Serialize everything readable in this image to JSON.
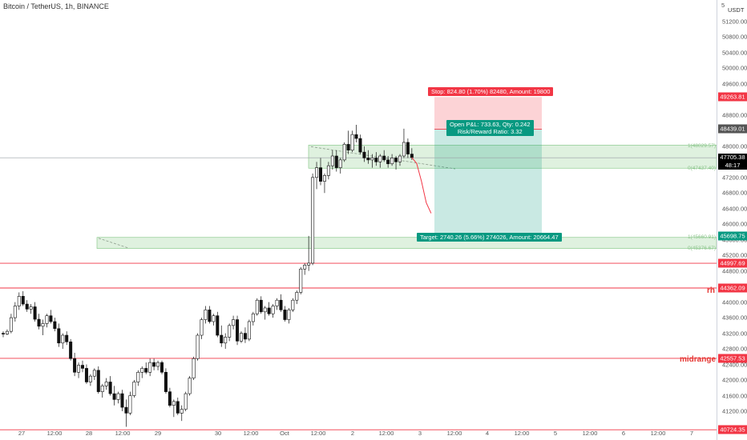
{
  "header": {
    "title": "Bitcoin / TetherUS, 1h, BINANCE"
  },
  "axis": {
    "currency": "USDT",
    "currency_prefix": "5"
  },
  "chart_data": {
    "type": "candlestick",
    "title": "Bitcoin / TetherUS, 1h, BINANCE",
    "ylim": [
      40720,
      51500
    ],
    "y_ticks": [
      "51200.00",
      "50800.00",
      "50400.00",
      "50000.00",
      "49600.00",
      "49200.00",
      "48800.00",
      "48400.00",
      "48000.00",
      "47600.00",
      "47200.00",
      "46800.00",
      "46400.00",
      "46000.00",
      "45600.00",
      "45200.00",
      "44800.00",
      "44400.00",
      "44000.00",
      "43600.00",
      "43200.00",
      "42800.00",
      "42400.00",
      "42000.00",
      "41600.00",
      "41200.00"
    ],
    "x_ticks": [
      "27",
      "12:00",
      "28",
      "12:00",
      "29",
      "30",
      "12:00",
      "Oct",
      "12:00",
      "2",
      "12:00",
      "3",
      "12:00",
      "4",
      "12:00",
      "5",
      "12:00",
      "6",
      "12:00",
      "7"
    ],
    "horizontal_levels": [
      {
        "value": 44997.69,
        "label": "44997.69",
        "color": "#f23645"
      },
      {
        "value": 44362.09,
        "label": "44362.09",
        "color": "#f23645",
        "note": "rh"
      },
      {
        "value": 42557.53,
        "label": "42557.53",
        "color": "#f23645",
        "note": "midrange"
      },
      {
        "value": 40724.35,
        "label": "40724.35",
        "color": "#f23645"
      }
    ],
    "price_labels": {
      "current": {
        "value": 47705.38,
        "label": "47705.38",
        "countdown": "48:17",
        "color": "#000000"
      },
      "stop": {
        "value": 49263.81,
        "label": "49263.81",
        "color": "#f23645"
      },
      "entry": {
        "value": 48439.01,
        "label": "48439.01",
        "color": "#555555"
      },
      "target": {
        "value": 45698.75,
        "label": "45698.75",
        "color": "#089981"
      }
    },
    "position": {
      "type": "short",
      "entry": 48439.01,
      "stop": 49263.81,
      "target": 45698.75,
      "stop_text": "Stop: 824.80 (1.70%) 82480, Amount: 19800",
      "pnl_text": "Open P&L: 733.63, Qty: 0.242",
      "rr_text": "Risk/Reward Ratio: 3.32",
      "target_text": "Target: 2740.26 (5.66%) 274026, Amount: 20664.47"
    },
    "zones": [
      {
        "top": 48029.57,
        "bottom": 47437.4,
        "top_label": "1(48029.57)",
        "bottom_label": "0(47437.40)"
      },
      {
        "top": 45660.91,
        "bottom": 45376.67,
        "top_label": "1(45660.91)",
        "bottom_label": "0(45376.67)"
      }
    ],
    "candles": [
      [
        43200,
        43250,
        43100,
        43180
      ],
      [
        43180,
        43300,
        43150,
        43250
      ],
      [
        43250,
        43700,
        43200,
        43600
      ],
      [
        43600,
        44000,
        43500,
        43900
      ],
      [
        43900,
        44250,
        43800,
        44150
      ],
      [
        44150,
        44280,
        43900,
        43950
      ],
      [
        43950,
        44050,
        43750,
        43820
      ],
      [
        43820,
        43950,
        43700,
        43880
      ],
      [
        43880,
        44000,
        43500,
        43560
      ],
      [
        43560,
        43700,
        43300,
        43380
      ],
      [
        43380,
        43550,
        43150,
        43450
      ],
      [
        43450,
        43700,
        43350,
        43650
      ],
      [
        43650,
        43800,
        43450,
        43500
      ],
      [
        43500,
        43600,
        43250,
        43320
      ],
      [
        43320,
        43450,
        42850,
        42950
      ],
      [
        42950,
        43200,
        42800,
        43150
      ],
      [
        43150,
        43250,
        42900,
        42980
      ],
      [
        42980,
        43050,
        42500,
        42550
      ],
      [
        42550,
        42700,
        42100,
        42200
      ],
      [
        42200,
        42450,
        42050,
        42380
      ],
      [
        42380,
        42500,
        42200,
        42300
      ],
      [
        42300,
        42400,
        41900,
        41950
      ],
      [
        41950,
        42150,
        41850,
        42100
      ],
      [
        42100,
        42300,
        42000,
        42250
      ],
      [
        42250,
        42350,
        41650,
        41700
      ],
      [
        41700,
        41900,
        41550,
        41850
      ],
      [
        41850,
        42050,
        41750,
        41950
      ],
      [
        41950,
        42100,
        41600,
        41650
      ],
      [
        41650,
        41850,
        41350,
        41500
      ],
      [
        41500,
        41700,
        41400,
        41650
      ],
      [
        41650,
        41750,
        41200,
        41300
      ],
      [
        41300,
        41500,
        40800,
        41150
      ],
      [
        41150,
        41700,
        41100,
        41600
      ],
      [
        41600,
        42000,
        41550,
        41950
      ],
      [
        41950,
        42250,
        41850,
        42200
      ],
      [
        42200,
        42350,
        42050,
        42300
      ],
      [
        42300,
        42450,
        42150,
        42200
      ],
      [
        42200,
        42550,
        42100,
        42450
      ],
      [
        42450,
        42550,
        42250,
        42350
      ],
      [
        42350,
        42500,
        42250,
        42450
      ],
      [
        42450,
        42500,
        42150,
        42200
      ],
      [
        42200,
        42300,
        41650,
        41700
      ],
      [
        41700,
        41800,
        41300,
        41350
      ],
      [
        41350,
        41500,
        41050,
        41450
      ],
      [
        41450,
        41550,
        41100,
        41150
      ],
      [
        41150,
        41350,
        40950,
        41250
      ],
      [
        41250,
        41700,
        41200,
        41650
      ],
      [
        41650,
        42100,
        41600,
        42050
      ],
      [
        42050,
        42600,
        42000,
        42550
      ],
      [
        42550,
        43200,
        42500,
        43150
      ],
      [
        43150,
        43600,
        43050,
        43550
      ],
      [
        43550,
        43900,
        43450,
        43800
      ],
      [
        43800,
        43900,
        43450,
        43500
      ],
      [
        43500,
        43700,
        43400,
        43650
      ],
      [
        43650,
        43750,
        43100,
        43150
      ],
      [
        43150,
        43400,
        42850,
        42950
      ],
      [
        42950,
        43200,
        42800,
        43100
      ],
      [
        43100,
        43450,
        43000,
        43400
      ],
      [
        43400,
        43650,
        43300,
        43550
      ],
      [
        43550,
        43650,
        42900,
        43000
      ],
      [
        43000,
        43250,
        42950,
        43200
      ],
      [
        43200,
        43350,
        42950,
        43050
      ],
      [
        43050,
        43550,
        43000,
        43500
      ],
      [
        43500,
        43750,
        43400,
        43700
      ],
      [
        43700,
        44100,
        43650,
        44050
      ],
      [
        44050,
        44150,
        43700,
        43750
      ],
      [
        43750,
        43900,
        43550,
        43850
      ],
      [
        43850,
        44000,
        43650,
        43700
      ],
      [
        43700,
        43950,
        43600,
        43900
      ],
      [
        43900,
        44100,
        43800,
        44050
      ],
      [
        44050,
        44200,
        43750,
        43800
      ],
      [
        43800,
        43900,
        43500,
        43550
      ],
      [
        43550,
        43850,
        43450,
        43800
      ],
      [
        43800,
        44100,
        43750,
        44050
      ],
      [
        44050,
        44300,
        43950,
        44250
      ],
      [
        44250,
        44900,
        44200,
        44850
      ],
      [
        44850,
        45000,
        44700,
        44950
      ],
      [
        44950,
        45700,
        44800,
        45000
      ],
      [
        45000,
        47300,
        44950,
        47200
      ],
      [
        47200,
        47600,
        46900,
        47450
      ],
      [
        47450,
        47700,
        47000,
        47100
      ],
      [
        47100,
        47300,
        46800,
        47250
      ],
      [
        47250,
        47600,
        47150,
        47500
      ],
      [
        47500,
        47900,
        47400,
        47750
      ],
      [
        47750,
        47900,
        47350,
        47450
      ],
      [
        47450,
        47700,
        47300,
        47650
      ],
      [
        47650,
        48100,
        47600,
        48050
      ],
      [
        48050,
        48400,
        47800,
        47900
      ],
      [
        47900,
        48400,
        47850,
        48300
      ],
      [
        48300,
        48550,
        48100,
        48200
      ],
      [
        48200,
        48300,
        47800,
        47850
      ],
      [
        47850,
        48000,
        47600,
        47700
      ],
      [
        47700,
        47900,
        47550,
        47650
      ],
      [
        47650,
        47800,
        47450,
        47700
      ],
      [
        47700,
        47850,
        47500,
        47600
      ],
      [
        47600,
        47800,
        47450,
        47750
      ],
      [
        47750,
        47900,
        47600,
        47650
      ],
      [
        47650,
        47750,
        47450,
        47550
      ],
      [
        47550,
        47800,
        47500,
        47700
      ],
      [
        47700,
        47750,
        47400,
        47600
      ],
      [
        47600,
        47800,
        47500,
        47750
      ],
      [
        47750,
        48450,
        47700,
        48100
      ],
      [
        48100,
        48200,
        47700,
        47800
      ],
      [
        47800,
        47950,
        47650,
        47710
      ]
    ],
    "projection": [
      [
        47710,
        47560
      ],
      [
        47560,
        47100
      ],
      [
        47100,
        46550
      ],
      [
        46550,
        46280
      ]
    ]
  }
}
